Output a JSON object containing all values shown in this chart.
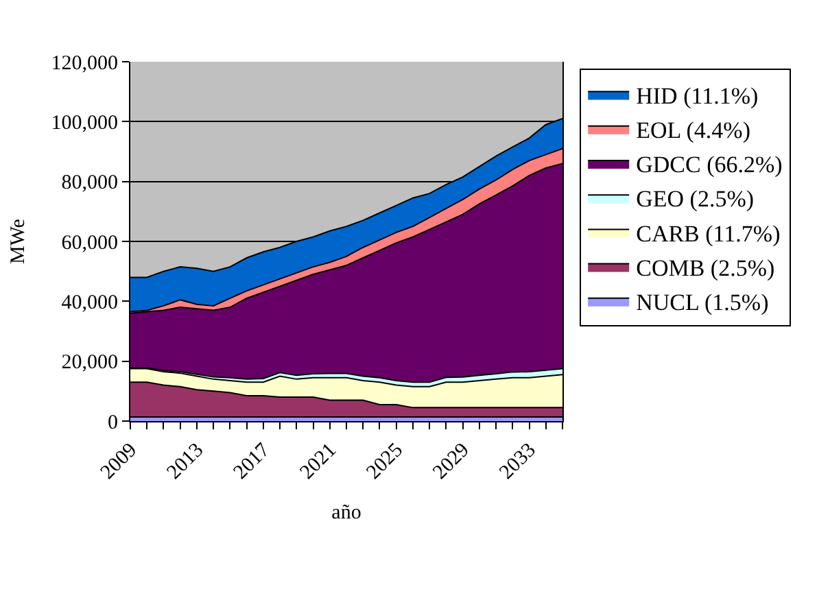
{
  "chart_data": {
    "type": "area",
    "stacked": true,
    "xlabel": "año",
    "ylabel": "MWe",
    "x": [
      2009,
      2010,
      2011,
      2012,
      2013,
      2014,
      2015,
      2016,
      2017,
      2018,
      2019,
      2020,
      2021,
      2022,
      2023,
      2024,
      2025,
      2026,
      2027,
      2028,
      2029,
      2030,
      2031,
      2032,
      2033,
      2034,
      2035
    ],
    "xlim": [
      2009,
      2035
    ],
    "xticks": [
      2009,
      {
        "value": 2010,
        "label": null
      },
      {
        "value": 2011,
        "label": null
      },
      {
        "value": 2012,
        "label": null
      },
      2013,
      {
        "value": 2014,
        "label": null
      },
      {
        "value": 2015,
        "label": null
      },
      {
        "value": 2016,
        "label": null
      },
      2017,
      {
        "value": 2018,
        "label": null
      },
      {
        "value": 2019,
        "label": null
      },
      {
        "value": 2020,
        "label": null
      },
      2021,
      {
        "value": 2022,
        "label": null
      },
      {
        "value": 2023,
        "label": null
      },
      {
        "value": 2024,
        "label": null
      },
      2025,
      {
        "value": 2026,
        "label": null
      },
      {
        "value": 2027,
        "label": null
      },
      {
        "value": 2028,
        "label": null
      },
      2029,
      {
        "value": 2030,
        "label": null
      },
      {
        "value": 2031,
        "label": null
      },
      {
        "value": 2032,
        "label": null
      },
      2033,
      {
        "value": 2034,
        "label": null
      },
      {
        "value": 2035,
        "label": null
      }
    ],
    "ylim": [
      0,
      120000
    ],
    "yticks": [
      {
        "value": 0,
        "label": "0"
      },
      {
        "value": 20000,
        "label": "20,000"
      },
      {
        "value": 40000,
        "label": "40,000"
      },
      {
        "value": 60000,
        "label": "60,000"
      },
      {
        "value": 80000,
        "label": "80,000"
      },
      {
        "value": 100000,
        "label": "100,000"
      },
      {
        "value": 120000,
        "label": "120,000"
      }
    ],
    "grid": "y",
    "legend": "right",
    "series": [
      {
        "name": "NUCL (1.5%)",
        "color": "#9999ff",
        "values": [
          1400,
          1400,
          1400,
          1400,
          1400,
          1400,
          1400,
          1400,
          1400,
          1400,
          1400,
          1400,
          1400,
          1400,
          1400,
          1400,
          1400,
          1400,
          1400,
          1400,
          1400,
          1400,
          1400,
          1400,
          1400,
          1400,
          1400
        ]
      },
      {
        "name": "COMB (2.5%)",
        "color": "#993366",
        "values": [
          11600,
          11600,
          10600,
          10100,
          9100,
          8600,
          8100,
          7100,
          7100,
          6600,
          6600,
          6600,
          5600,
          5600,
          5600,
          4100,
          4100,
          3100,
          3100,
          3100,
          3100,
          3100,
          3100,
          3100,
          3100,
          3100,
          3100
        ]
      },
      {
        "name": "CARB (11.7%)",
        "color": "#ffffcc",
        "values": [
          4500,
          4500,
          4500,
          4500,
          4500,
          4000,
          4000,
          4500,
          4500,
          7000,
          6000,
          6500,
          7500,
          7500,
          6500,
          7500,
          6500,
          7000,
          7000,
          8500,
          8500,
          9000,
          9500,
          10000,
          10000,
          10500,
          11000
        ]
      },
      {
        "name": "GEO (2.5%)",
        "color": "#ccffff",
        "values": [
          300,
          300,
          400,
          500,
          600,
          800,
          1000,
          1000,
          1200,
          1200,
          1300,
          1300,
          1400,
          1400,
          1500,
          1500,
          1500,
          1500,
          1500,
          1600,
          1700,
          1800,
          1800,
          1900,
          2000,
          2000,
          2000
        ]
      },
      {
        "name": "GDCC (66.2%)",
        "color": "#660066",
        "values": [
          18200,
          18700,
          20100,
          21500,
          21900,
          22200,
          23500,
          27000,
          28800,
          28800,
          31700,
          33200,
          34600,
          36100,
          39500,
          42500,
          46000,
          48500,
          51000,
          51900,
          54300,
          57200,
          59700,
          62100,
          65500,
          67500,
          68500
        ]
      },
      {
        "name": "EOL (4.4%)",
        "color": "#ff8080",
        "values": [
          500,
          500,
          1500,
          2500,
          1500,
          1500,
          3000,
          2500,
          2500,
          2500,
          2500,
          2500,
          2500,
          3000,
          3500,
          3500,
          3500,
          3500,
          4000,
          4500,
          5000,
          5000,
          5000,
          5500,
          5000,
          4500,
          5000
        ]
      },
      {
        "name": "HID (11.1%)",
        "color": "#0066cc",
        "values": [
          11500,
          11000,
          11500,
          11000,
          12000,
          11500,
          10500,
          11000,
          11000,
          10500,
          10500,
          10000,
          10500,
          10000,
          9000,
          9000,
          9000,
          9500,
          8000,
          8000,
          7500,
          7500,
          8000,
          7500,
          7500,
          10000,
          10000
        ]
      }
    ]
  }
}
